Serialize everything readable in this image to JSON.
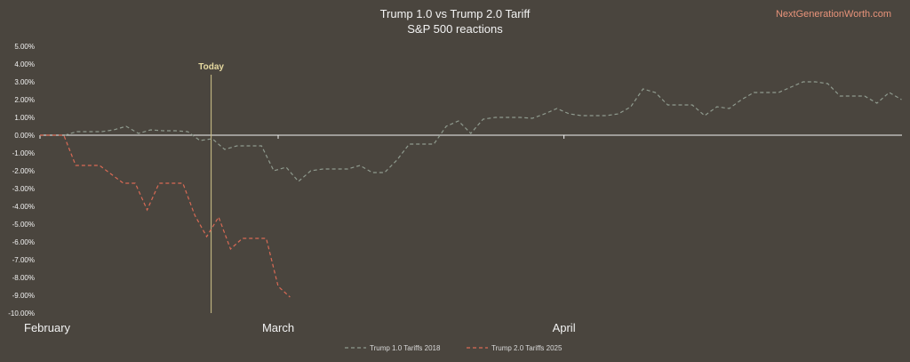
{
  "brand": "NextGenerationWorth.com",
  "chart_data": {
    "type": "line",
    "title": "Trump 1.0 vs Trump 2.0 Tariff",
    "subtitle": "S&P 500 reactions",
    "ylim": [
      -10,
      5
    ],
    "y_ticks": [
      "5.00%",
      "4.00%",
      "3.00%",
      "2.00%",
      "1.00%",
      "0.00%",
      "-1.00%",
      "-2.00%",
      "-3.00%",
      "-4.00%",
      "-5.00%",
      "-6.00%",
      "-7.00%",
      "-8.00%",
      "-9.00%",
      "-10.00%"
    ],
    "x_range": [
      0,
      64
    ],
    "x_labels": [
      {
        "label": "February",
        "x": 0
      },
      {
        "label": "March",
        "x": 20
      },
      {
        "label": "April",
        "x": 44
      }
    ],
    "annotation": {
      "label": "Today",
      "x": 14
    },
    "grid": false,
    "legend_position": "bottom",
    "series": [
      {
        "name": "Trump 1.0 Tariffs  2018",
        "color": "#8f9a8e",
        "dash": "dashed",
        "values": [
          0,
          0,
          0,
          0.2,
          0.2,
          0.2,
          0.3,
          0.5,
          0.1,
          0.3,
          0.25,
          0.25,
          0.2,
          -0.3,
          -0.2,
          -0.8,
          -0.6,
          -0.6,
          -0.6,
          -2.0,
          -1.8,
          -2.6,
          -2.0,
          -1.9,
          -1.9,
          -1.9,
          -1.7,
          -2.1,
          -2.1,
          -1.4,
          -0.5,
          -0.5,
          -0.5,
          0.5,
          0.8,
          0.1,
          0.9,
          1.0,
          1.0,
          1.0,
          0.95,
          1.2,
          1.5,
          1.2,
          1.1,
          1.1,
          1.1,
          1.2,
          1.6,
          2.6,
          2.4,
          1.7,
          1.7,
          1.7,
          1.1,
          1.6,
          1.5,
          2.0,
          2.4,
          2.4,
          2.4,
          2.7,
          3.0,
          3.0,
          2.9,
          2.2,
          2.2,
          2.2,
          1.8,
          2.4,
          2.0
        ]
      },
      {
        "name": "Trump 2.0 Tariffs  2025",
        "color": "#d96a55",
        "dash": "dashed",
        "values": [
          0,
          0,
          0,
          -1.7,
          -1.7,
          -1.7,
          -2.2,
          -2.7,
          -2.7,
          -4.2,
          -2.7,
          -2.7,
          -2.7,
          -4.5,
          -5.7,
          -4.6,
          -6.4,
          -5.8,
          -5.8,
          -5.8,
          -8.5,
          -9.1
        ]
      }
    ]
  }
}
